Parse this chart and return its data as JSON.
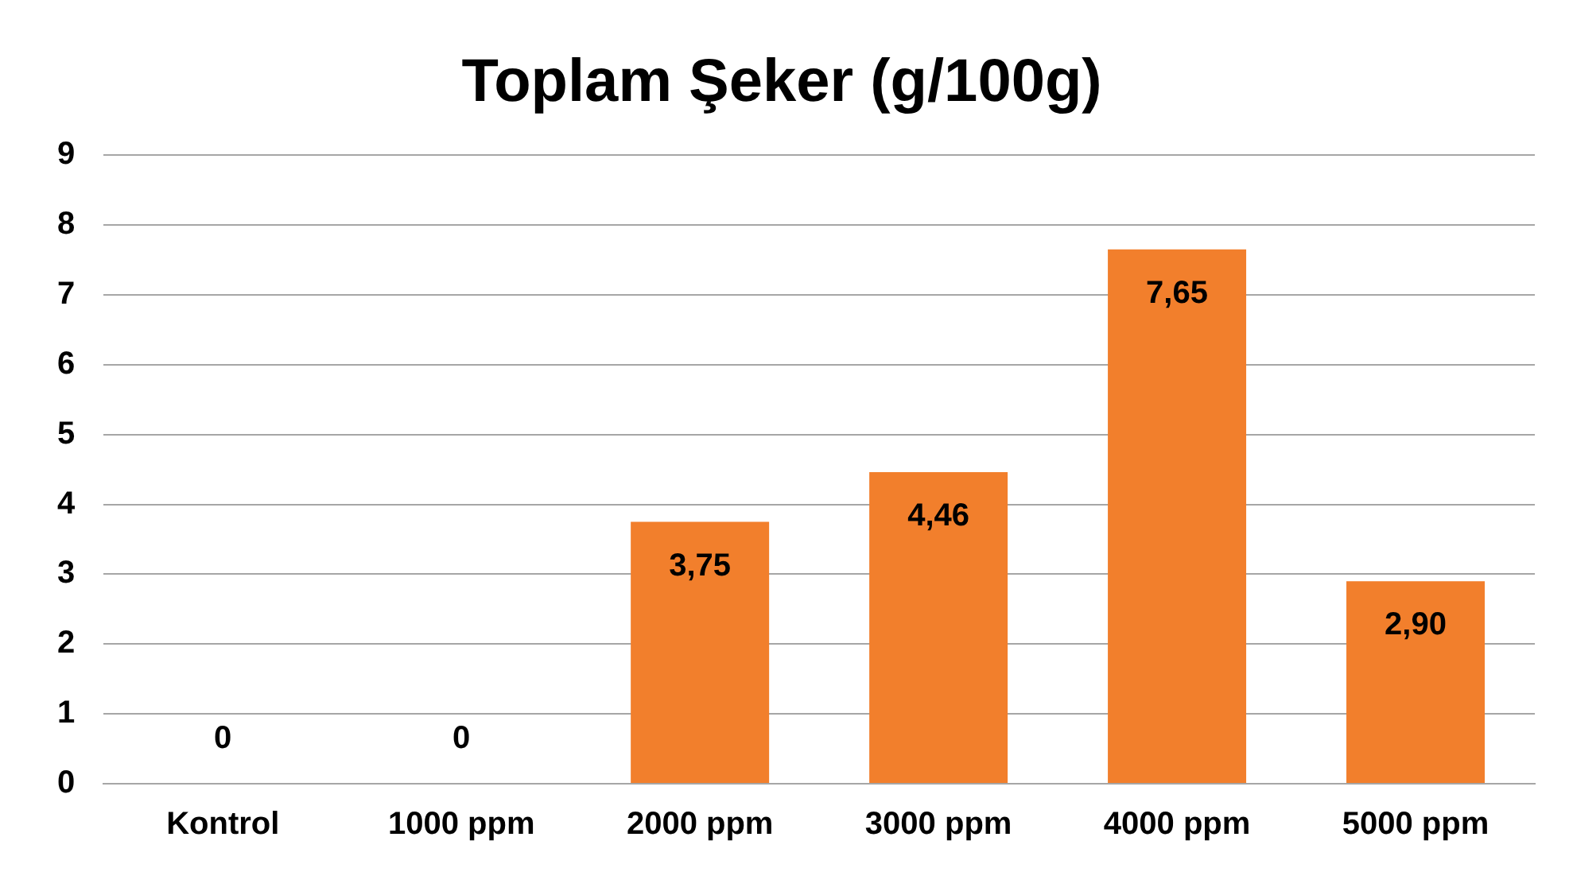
{
  "chart_data": {
    "type": "bar",
    "title": "Toplam Şeker (g/100g)",
    "categories": [
      "Kontrol",
      "1000 ppm",
      "2000 ppm",
      "3000 ppm",
      "4000 ppm",
      "5000 ppm"
    ],
    "values": [
      0,
      0,
      3.75,
      4.46,
      7.65,
      2.9
    ],
    "value_labels": [
      "0",
      "0",
      "3,75",
      "4,46",
      "7,65",
      "2,90"
    ],
    "color": "#f27f2c",
    "ylim": [
      0,
      9
    ],
    "yticks": [
      0,
      1,
      2,
      3,
      4,
      5,
      6,
      7,
      8,
      9
    ],
    "grid": "y",
    "legend": false
  }
}
